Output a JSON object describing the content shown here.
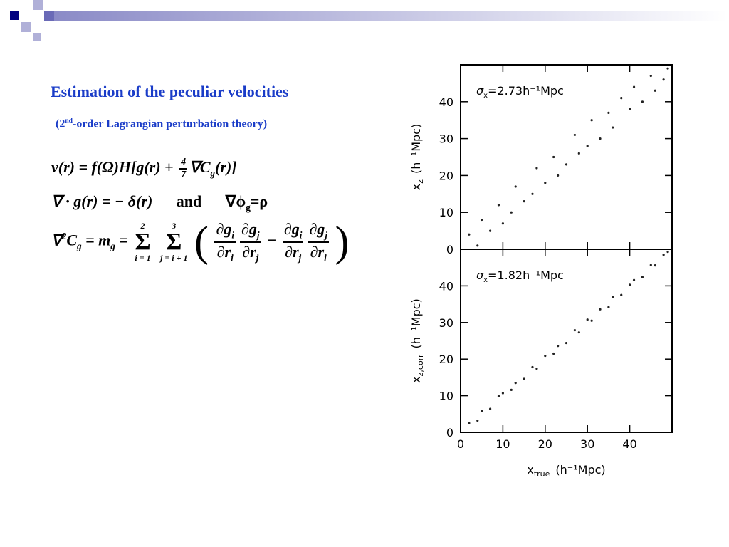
{
  "slide": {
    "title": "Estimation of the peculiar velocities",
    "subtitle": {
      "before": "(2",
      "sup": "nd",
      "after": "-order Lagrangian perturbation theory)"
    },
    "equation_1": [
      "v(r) = f(Ω)H[g(r) + ",
      "4",
      "7",
      "∇C",
      "g",
      "(r)]"
    ],
    "equation_2": [
      "∇ · g(r) = − δ(r)",
      "and",
      "∇ϕ",
      "g",
      "=ρ"
    ],
    "equation_3": {
      "lhs": [
        "∇",
        "2",
        "C",
        "g",
        " = m",
        "g",
        " ="
      ],
      "sums": [
        {
          "upper": "2",
          "symbol": "Σ",
          "lower": "i = 1"
        },
        {
          "upper": "3",
          "symbol": "Σ",
          "lower": "j = i + 1"
        }
      ],
      "open": "(",
      "close": ")",
      "minus": "−",
      "fractions": [
        {
          "num": "∂g",
          "num_sub": "i",
          "den": "∂r",
          "den_sub": "i"
        },
        {
          "num": "∂g",
          "num_sub": "j",
          "den": "∂r",
          "den_sub": "j"
        },
        {
          "num": "∂g",
          "num_sub": "i",
          "den": "∂r",
          "den_sub": "j"
        },
        {
          "num": "∂g",
          "num_sub": "j",
          "den": "∂r",
          "den_sub": "i"
        }
      ]
    }
  },
  "chart_data": [
    {
      "type": "scatter",
      "color": "#222222",
      "annotation": {
        "symbol": "σ",
        "sub": "x",
        "text": "=2.73h⁻¹Mpc"
      },
      "ylabel": {
        "main": "x",
        "sub": "z",
        "unit": "(h⁻¹Mpc)"
      },
      "xlim": [
        0,
        50
      ],
      "ylim": [
        0,
        50
      ],
      "xticks": [
        0,
        10,
        20,
        30,
        40
      ],
      "yticks": [
        0,
        10,
        20,
        30,
        40
      ],
      "show_xtick_labels": false,
      "x": [
        2,
        4,
        5,
        7,
        9,
        10,
        12,
        13,
        15,
        17,
        18,
        20,
        22,
        23,
        25,
        27,
        28,
        30,
        31,
        33,
        35,
        36,
        38,
        40,
        41,
        43,
        45,
        46,
        48,
        49
      ],
      "y": [
        4,
        1,
        8,
        5,
        12,
        7,
        10,
        17,
        13,
        15,
        22,
        18,
        25,
        20,
        23,
        31,
        26,
        28,
        35,
        30,
        37,
        33,
        41,
        38,
        44,
        40,
        47,
        43,
        46,
        49
      ]
    },
    {
      "type": "scatter",
      "color": "#222222",
      "annotation": {
        "symbol": "σ",
        "sub": "x",
        "text": "=1.82h⁻¹Mpc"
      },
      "ylabel": {
        "main": "x",
        "sub": "z,corr",
        "unit": "(h⁻¹Mpc)"
      },
      "xlabel": {
        "main": "x",
        "sub": "true",
        "unit": "(h⁻¹Mpc)"
      },
      "xlim": [
        0,
        50
      ],
      "ylim": [
        0,
        50
      ],
      "xticks": [
        0,
        10,
        20,
        30,
        40
      ],
      "yticks": [
        0,
        10,
        20,
        30,
        40
      ],
      "show_xtick_labels": true,
      "x": [
        2,
        4,
        5,
        7,
        9,
        10,
        12,
        13,
        15,
        17,
        18,
        20,
        22,
        23,
        25,
        27,
        28,
        30,
        31,
        33,
        35,
        36,
        38,
        40,
        41,
        43,
        45,
        46,
        48,
        49
      ],
      "y": [
        2.5,
        3.2,
        5.8,
        6.4,
        9.9,
        10.7,
        11.6,
        13.5,
        14.6,
        17.8,
        17.4,
        20.9,
        21.5,
        23.6,
        24.4,
        27.9,
        27.3,
        30.8,
        30.5,
        33.6,
        34.2,
        36.9,
        37.5,
        40.3,
        41.6,
        42.4,
        45.7,
        45.6,
        48.5,
        49.3
      ]
    }
  ]
}
